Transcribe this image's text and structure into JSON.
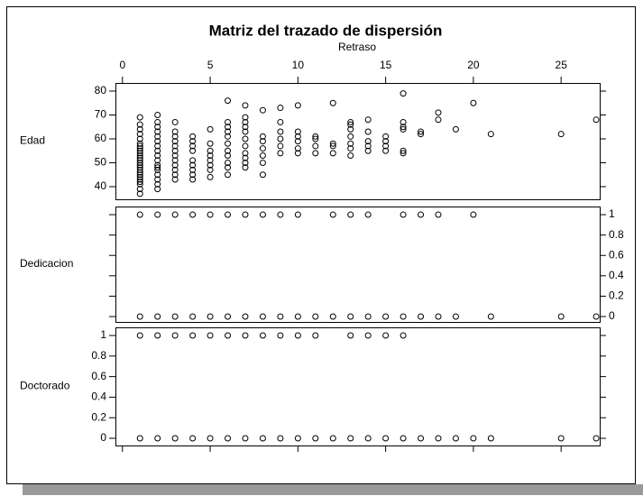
{
  "chart_data": [
    {
      "type": "scatter",
      "title": "Matriz del trazado de dispersión",
      "xlabel": "Retraso",
      "ylabel": "Edad",
      "xlim": [
        -0.4,
        27.2
      ],
      "xticks": [
        0,
        5,
        10,
        15,
        20,
        25
      ],
      "ylim": [
        34.7,
        83.4
      ],
      "yticks": [
        40,
        50,
        60,
        70,
        80
      ],
      "ytick_side": "left",
      "color": "#000000",
      "x": [
        1,
        1,
        1,
        1,
        1,
        1,
        1,
        1,
        1,
        1,
        1,
        1,
        1,
        1,
        1,
        1,
        1,
        1,
        1,
        1,
        1,
        1,
        1,
        1,
        1,
        2,
        2,
        2,
        2,
        2,
        2,
        2,
        2,
        2,
        2,
        2,
        2,
        2,
        2,
        2,
        2,
        2,
        3,
        3,
        3,
        3,
        3,
        3,
        3,
        3,
        3,
        3,
        3,
        3,
        4,
        4,
        4,
        4,
        4,
        4,
        4,
        4,
        4,
        5,
        5,
        5,
        5,
        5,
        5,
        5,
        5,
        6,
        6,
        6,
        6,
        6,
        6,
        6,
        6,
        6,
        6,
        6,
        7,
        7,
        7,
        7,
        7,
        7,
        7,
        7,
        7,
        7,
        7,
        8,
        8,
        8,
        8,
        8,
        8,
        8,
        9,
        9,
        9,
        9,
        9,
        9,
        10,
        10,
        10,
        10,
        10,
        10,
        11,
        11,
        11,
        11,
        12,
        12,
        12,
        12,
        13,
        13,
        13,
        13,
        13,
        13,
        13,
        14,
        14,
        14,
        14,
        14,
        15,
        15,
        15,
        15,
        16,
        16,
        16,
        16,
        16,
        16,
        17,
        17,
        18,
        18,
        19,
        20,
        21,
        25,
        27
      ],
      "y": [
        37,
        39,
        41,
        42,
        43,
        44,
        45,
        46,
        47,
        48,
        49,
        50,
        51,
        52,
        53,
        54,
        55,
        56,
        57,
        58,
        60,
        62,
        64,
        66,
        69,
        39,
        41,
        43,
        45,
        47,
        48,
        49,
        51,
        53,
        55,
        57,
        59,
        61,
        63,
        65,
        67,
        70,
        43,
        45,
        47,
        49,
        51,
        53,
        55,
        57,
        59,
        61,
        63,
        67,
        43,
        45,
        47,
        49,
        51,
        55,
        57,
        59,
        61,
        44,
        47,
        49,
        51,
        53,
        55,
        58,
        64,
        45,
        48,
        50,
        53,
        55,
        58,
        61,
        63,
        65,
        67,
        76,
        48,
        50,
        52,
        54,
        57,
        60,
        63,
        65,
        67,
        69,
        74,
        45,
        50,
        53,
        56,
        59,
        61,
        72,
        54,
        57,
        60,
        63,
        67,
        73,
        54,
        56,
        59,
        61,
        63,
        74,
        54,
        57,
        60,
        61,
        54,
        57,
        58,
        75,
        53,
        56,
        58,
        61,
        64,
        66,
        67,
        55,
        57,
        59,
        63,
        68,
        55,
        57,
        59,
        61,
        54,
        55,
        64,
        65,
        67,
        79,
        62,
        63,
        68,
        71,
        64,
        75,
        62,
        62,
        68
      ]
    },
    {
      "type": "scatter",
      "ylabel": "Dedicacion",
      "ylim": [
        -0.053,
        1.08
      ],
      "yticks": [
        0,
        0.2,
        0.4,
        0.6,
        0.8,
        1
      ],
      "ytick_side": "right",
      "color": "#000000",
      "x": [
        1,
        2,
        3,
        4,
        5,
        6,
        7,
        8,
        9,
        10,
        12,
        13,
        14,
        16,
        17,
        18,
        20,
        1,
        2,
        3,
        4,
        5,
        6,
        7,
        8,
        9,
        10,
        11,
        12,
        13,
        14,
        15,
        16,
        17,
        18,
        19,
        21,
        25,
        27
      ],
      "y": [
        1,
        1,
        1,
        1,
        1,
        1,
        1,
        1,
        1,
        1,
        1,
        1,
        1,
        1,
        1,
        1,
        1,
        0,
        0,
        0,
        0,
        0,
        0,
        0,
        0,
        0,
        0,
        0,
        0,
        0,
        0,
        0,
        0,
        0,
        0,
        0,
        0,
        0,
        0
      ]
    },
    {
      "type": "scatter",
      "ylabel": "Doctorado",
      "ylim": [
        -0.07,
        1.079
      ],
      "yticks": [
        0,
        0.2,
        0.4,
        0.6,
        0.8,
        1
      ],
      "ytick_side": "left",
      "color": "#000000",
      "x": [
        1,
        2,
        3,
        4,
        5,
        6,
        7,
        8,
        9,
        10,
        11,
        13,
        14,
        15,
        16,
        1,
        2,
        3,
        4,
        5,
        6,
        7,
        8,
        9,
        10,
        11,
        12,
        13,
        14,
        15,
        16,
        17,
        18,
        19,
        20,
        21,
        25,
        27
      ],
      "y": [
        1,
        1,
        1,
        1,
        1,
        1,
        1,
        1,
        1,
        1,
        1,
        1,
        1,
        1,
        1,
        0,
        0,
        0,
        0,
        0,
        0,
        0,
        0,
        0,
        0,
        0,
        0,
        0,
        0,
        0,
        0,
        0,
        0,
        0,
        0,
        0,
        0,
        0
      ]
    }
  ]
}
